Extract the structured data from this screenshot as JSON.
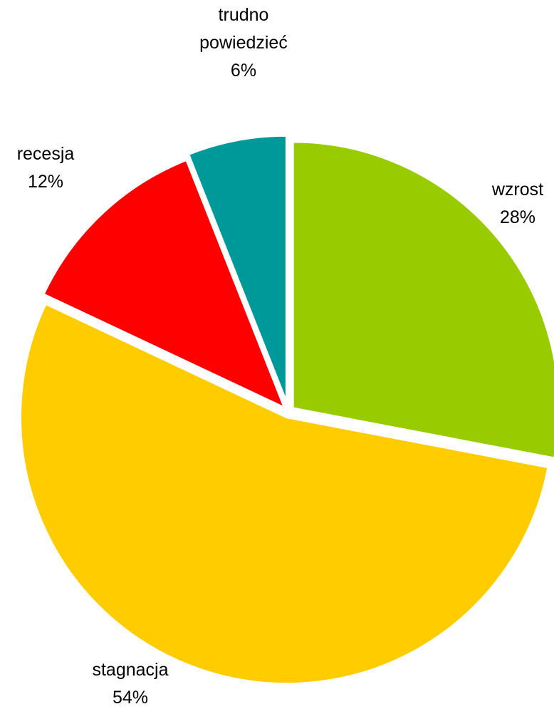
{
  "chart_data": {
    "type": "pie",
    "slices": [
      {
        "name": "wzrost",
        "value": 28,
        "value_label": "28%",
        "color": "#99cc00"
      },
      {
        "name": "stagnacja",
        "value": 54,
        "value_label": "54%",
        "color": "#ffcc00"
      },
      {
        "name": "recesja",
        "value": 12,
        "value_label": "12%",
        "color": "#ff0000"
      },
      {
        "name": "trudno powiedzieć",
        "name_lines": [
          "trudno",
          "powiedzieć"
        ],
        "value": 6,
        "value_label": "6%",
        "color": "#009999"
      }
    ],
    "start_angle": "12 o'clock",
    "direction": "clockwise",
    "labels": "outside, category name and percentage"
  }
}
